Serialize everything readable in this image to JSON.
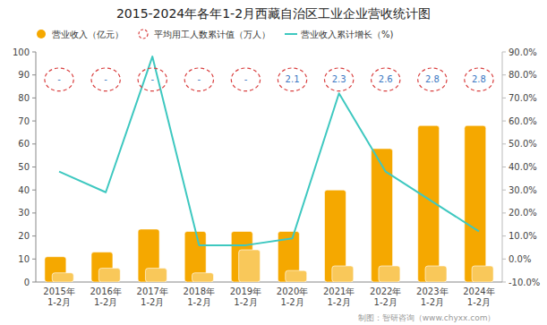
{
  "chart_data": {
    "type": "bar",
    "title": "2015-2024年各年1-2月西藏自治区工业企业营收统计图",
    "categories": [
      "2015年\n1-2月",
      "2016年\n1-2月",
      "2017年\n1-2月",
      "2018年\n1-2月",
      "2019年\n1-2月",
      "2020年\n1-2月",
      "2021年\n1-2月",
      "2022年\n1-2月",
      "2023年\n1-2月",
      "2024年\n1-2月"
    ],
    "series": [
      {
        "name": "营业收入（亿元）",
        "type": "bar",
        "color": "#F5A800",
        "values": [
          11,
          13,
          23,
          22,
          22,
          22,
          40,
          58,
          68,
          68
        ]
      },
      {
        "type": "bar",
        "color": "#F9C85A",
        "values": [
          4,
          6,
          6,
          4,
          14,
          5,
          7,
          7,
          7,
          7
        ]
      },
      {
        "name": "平均用工人数累计值（万人）",
        "type": "label",
        "color": "#D94040",
        "marker": "ellipse",
        "line_style": "dashed",
        "data_labels": true,
        "values": [
          null,
          null,
          null,
          null,
          null,
          2.1,
          2.3,
          2.6,
          2.8,
          2.8
        ],
        "value_labels": [
          "-",
          "-",
          "-",
          "-",
          "-",
          "2.1",
          "2.3",
          "2.6",
          "2.8",
          "2.8"
        ]
      },
      {
        "name": "营业收入累计增长（%)",
        "type": "line",
        "axis": "y2",
        "color": "#3EC8C0",
        "values": [
          38,
          29,
          88,
          6,
          6,
          9,
          72,
          38,
          25,
          12
        ]
      }
    ],
    "ylim": [
      0,
      100
    ],
    "yticks": [
      0,
      10,
      20,
      30,
      40,
      50,
      60,
      70,
      80,
      90,
      100
    ],
    "y2lim": [
      -10.0,
      90.0
    ],
    "y2ticks": [
      {
        "value": -10.0,
        "label": "-10.0%"
      },
      {
        "value": 0.0,
        "label": "0.0%"
      },
      {
        "value": 10.0,
        "label": "10.0%"
      },
      {
        "value": 20.0,
        "label": "20.0%"
      },
      {
        "value": 30.0,
        "label": "30.0%"
      },
      {
        "value": 40.0,
        "label": "40.0%"
      },
      {
        "value": 50.0,
        "label": "50.0%"
      },
      {
        "value": 60.0,
        "label": "60.0%"
      },
      {
        "value": 70.0,
        "label": "70.0%"
      },
      {
        "value": 80.0,
        "label": "80.0%"
      },
      {
        "value": 90.0,
        "label": "90.0%"
      }
    ],
    "grid": false,
    "legend": "upper left",
    "annotations": [
      "制图：智研咨询（www.chyxx.com）"
    ]
  }
}
